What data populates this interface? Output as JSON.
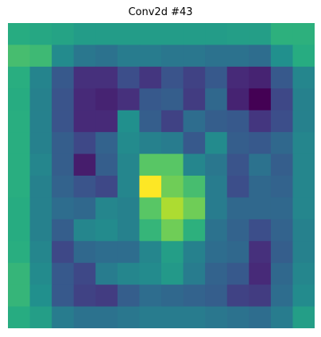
{
  "chart_data": {
    "type": "heatmap",
    "title": "Conv2d #43",
    "colormap": "viridis",
    "axes_visible": false,
    "rows": 14,
    "cols": 14,
    "vmin": 0.0,
    "vmax": 1.0,
    "z": [
      [
        0.62,
        0.6,
        0.58,
        0.55,
        0.55,
        0.55,
        0.55,
        0.55,
        0.55,
        0.55,
        0.56,
        0.56,
        0.64,
        0.64
      ],
      [
        0.7,
        0.68,
        0.48,
        0.4,
        0.38,
        0.42,
        0.42,
        0.4,
        0.4,
        0.38,
        0.38,
        0.36,
        0.5,
        0.62
      ],
      [
        0.63,
        0.45,
        0.28,
        0.14,
        0.14,
        0.24,
        0.16,
        0.26,
        0.2,
        0.28,
        0.12,
        0.1,
        0.28,
        0.46
      ],
      [
        0.62,
        0.44,
        0.26,
        0.12,
        0.1,
        0.14,
        0.28,
        0.3,
        0.18,
        0.34,
        0.1,
        0.0,
        0.22,
        0.44
      ],
      [
        0.63,
        0.44,
        0.26,
        0.12,
        0.12,
        0.5,
        0.3,
        0.2,
        0.36,
        0.3,
        0.28,
        0.16,
        0.24,
        0.44
      ],
      [
        0.63,
        0.44,
        0.3,
        0.22,
        0.32,
        0.48,
        0.44,
        0.42,
        0.28,
        0.48,
        0.3,
        0.28,
        0.34,
        0.46
      ],
      [
        0.63,
        0.46,
        0.3,
        0.08,
        0.3,
        0.46,
        0.74,
        0.74,
        0.46,
        0.4,
        0.26,
        0.38,
        0.3,
        0.46
      ],
      [
        0.63,
        0.44,
        0.32,
        0.26,
        0.22,
        0.46,
        1.0,
        0.78,
        0.7,
        0.42,
        0.24,
        0.34,
        0.32,
        0.46
      ],
      [
        0.62,
        0.44,
        0.36,
        0.34,
        0.46,
        0.44,
        0.74,
        0.88,
        0.78,
        0.42,
        0.34,
        0.34,
        0.34,
        0.46
      ],
      [
        0.62,
        0.44,
        0.3,
        0.46,
        0.48,
        0.44,
        0.66,
        0.78,
        0.64,
        0.38,
        0.32,
        0.24,
        0.32,
        0.44
      ],
      [
        0.63,
        0.46,
        0.22,
        0.34,
        0.36,
        0.36,
        0.46,
        0.56,
        0.44,
        0.36,
        0.34,
        0.14,
        0.3,
        0.44
      ],
      [
        0.66,
        0.48,
        0.28,
        0.22,
        0.42,
        0.46,
        0.48,
        0.54,
        0.42,
        0.32,
        0.28,
        0.12,
        0.34,
        0.46
      ],
      [
        0.66,
        0.5,
        0.28,
        0.2,
        0.18,
        0.3,
        0.36,
        0.34,
        0.32,
        0.3,
        0.2,
        0.18,
        0.36,
        0.48
      ],
      [
        0.62,
        0.56,
        0.42,
        0.38,
        0.38,
        0.4,
        0.42,
        0.42,
        0.42,
        0.4,
        0.38,
        0.36,
        0.42,
        0.56
      ]
    ]
  }
}
